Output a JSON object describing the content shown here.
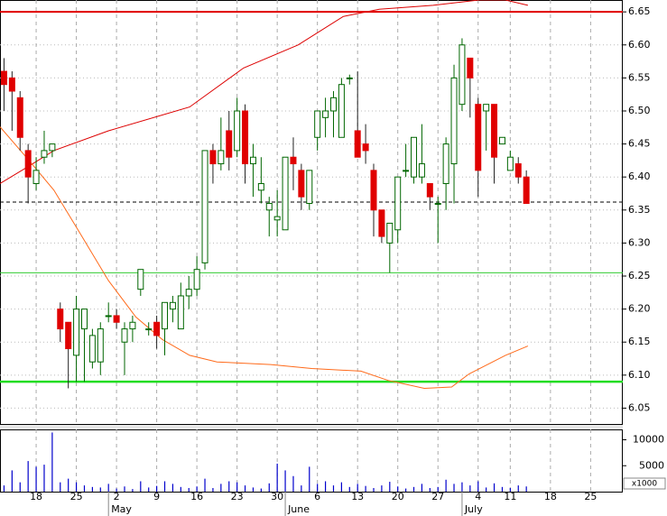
{
  "chart_data": {
    "type": "candlestick",
    "xlim": [
      -0.5,
      77
    ],
    "ylim": [
      6.026,
      6.668
    ],
    "yticks": [
      6.05,
      {
        "value": 6.1,
        "label": "6.10"
      },
      6.15,
      {
        "value": 6.2,
        "label": "6.20"
      },
      6.25,
      {
        "value": 6.3,
        "label": "6.30"
      },
      6.35,
      {
        "value": 6.4,
        "label": "6.40"
      },
      6.45,
      {
        "value": 6.5,
        "label": "6.50"
      },
      6.55,
      {
        "value": 6.6,
        "label": "6.60"
      },
      6.65
    ],
    "xticks": [
      {
        "value": 4,
        "label": "18"
      },
      {
        "value": 9,
        "label": "25"
      },
      {
        "value": 14,
        "label": "2"
      },
      {
        "value": 19,
        "label": "9"
      },
      {
        "value": 24,
        "label": "16"
      },
      {
        "value": 29,
        "label": "23"
      },
      {
        "value": 34,
        "label": "30"
      },
      {
        "value": 39,
        "label": "6"
      },
      {
        "value": 44,
        "label": "13"
      },
      {
        "value": 49,
        "label": "20"
      },
      {
        "value": 54,
        "label": "27"
      },
      {
        "value": 59,
        "label": "4"
      },
      {
        "value": 63,
        "label": "11"
      },
      {
        "value": 68,
        "label": "18"
      },
      {
        "value": 73,
        "label": "25"
      }
    ],
    "months": [
      {
        "value": 13,
        "label": "May"
      },
      {
        "value": 35,
        "label": "June"
      },
      {
        "value": 57,
        "label": "July"
      }
    ],
    "grid": true,
    "up_color": "#006600",
    "down_color": "#e00000",
    "candles": [
      {
        "o": 6.56,
        "h": 6.58,
        "l": 6.5,
        "c": 6.54
      },
      {
        "o": 6.55,
        "h": 6.56,
        "l": 6.47,
        "c": 6.53
      },
      {
        "o": 6.52,
        "h": 6.53,
        "l": 6.44,
        "c": 6.46
      },
      {
        "o": 6.44,
        "h": 6.45,
        "l": 6.36,
        "c": 6.4
      },
      {
        "o": 6.39,
        "h": 6.43,
        "l": 6.38,
        "c": 6.41
      },
      {
        "o": 6.43,
        "h": 6.47,
        "l": 6.42,
        "c": 6.44
      },
      {
        "o": 6.44,
        "h": 6.45,
        "l": 6.43,
        "c": 6.45
      },
      {
        "o": 6.2,
        "h": 6.21,
        "l": 6.15,
        "c": 6.17
      },
      {
        "o": 6.18,
        "h": 6.18,
        "l": 6.08,
        "c": 6.14
      },
      {
        "o": 6.13,
        "h": 6.22,
        "l": 6.09,
        "c": 6.2
      },
      {
        "o": 6.17,
        "h": 6.2,
        "l": 6.09,
        "c": 6.2
      },
      {
        "o": 6.12,
        "h": 6.17,
        "l": 6.11,
        "c": 6.16
      },
      {
        "o": 6.12,
        "h": 6.18,
        "l": 6.1,
        "c": 6.17
      },
      {
        "o": 6.19,
        "h": 6.21,
        "l": 6.18,
        "c": 6.19
      },
      {
        "o": 6.19,
        "h": 6.2,
        "l": 6.17,
        "c": 6.18
      },
      {
        "o": 6.15,
        "h": 6.18,
        "l": 6.1,
        "c": 6.17
      },
      {
        "o": 6.17,
        "h": 6.19,
        "l": 6.15,
        "c": 6.18
      },
      {
        "o": 6.23,
        "h": 6.26,
        "l": 6.22,
        "c": 6.26
      },
      {
        "o": 6.17,
        "h": 6.18,
        "l": 6.16,
        "c": 6.17
      },
      {
        "o": 6.18,
        "h": 6.19,
        "l": 6.14,
        "c": 6.16
      },
      {
        "o": 6.17,
        "h": 6.21,
        "l": 6.13,
        "c": 6.21
      },
      {
        "o": 6.2,
        "h": 6.22,
        "l": 6.18,
        "c": 6.21
      },
      {
        "o": 6.17,
        "h": 6.24,
        "l": 6.17,
        "c": 6.22
      },
      {
        "o": 6.22,
        "h": 6.25,
        "l": 6.2,
        "c": 6.23
      },
      {
        "o": 6.23,
        "h": 6.28,
        "l": 6.22,
        "c": 6.26
      },
      {
        "o": 6.27,
        "h": 6.44,
        "l": 6.26,
        "c": 6.44
      },
      {
        "o": 6.44,
        "h": 6.45,
        "l": 6.39,
        "c": 6.42
      },
      {
        "o": 6.42,
        "h": 6.49,
        "l": 6.41,
        "c": 6.44
      },
      {
        "o": 6.47,
        "h": 6.5,
        "l": 6.41,
        "c": 6.43
      },
      {
        "o": 6.44,
        "h": 6.52,
        "l": 6.43,
        "c": 6.5
      },
      {
        "o": 6.5,
        "h": 6.51,
        "l": 6.39,
        "c": 6.42
      },
      {
        "o": 6.42,
        "h": 6.45,
        "l": 6.37,
        "c": 6.43
      },
      {
        "o": 6.38,
        "h": 6.43,
        "l": 6.36,
        "c": 6.39
      },
      {
        "o": 6.35,
        "h": 6.37,
        "l": 6.31,
        "c": 6.36
      },
      {
        "o": 6.335,
        "h": 6.38,
        "l": 6.31,
        "c": 6.34
      },
      {
        "o": 6.32,
        "h": 6.43,
        "l": 6.32,
        "c": 6.43
      },
      {
        "o": 6.43,
        "h": 6.46,
        "l": 6.38,
        "c": 6.42
      },
      {
        "o": 6.41,
        "h": 6.42,
        "l": 6.35,
        "c": 6.37
      },
      {
        "o": 6.36,
        "h": 6.41,
        "l": 6.35,
        "c": 6.41
      },
      {
        "o": 6.46,
        "h": 6.5,
        "l": 6.44,
        "c": 6.5
      },
      {
        "o": 6.49,
        "h": 6.52,
        "l": 6.46,
        "c": 6.5
      },
      {
        "o": 6.5,
        "h": 6.53,
        "l": 6.46,
        "c": 6.52
      },
      {
        "o": 6.46,
        "h": 6.55,
        "l": 6.46,
        "c": 6.54
      },
      {
        "o": 6.55,
        "h": 6.555,
        "l": 6.54,
        "c": 6.55
      },
      {
        "o": 6.47,
        "h": 6.56,
        "l": 6.43,
        "c": 6.43
      },
      {
        "o": 6.45,
        "h": 6.48,
        "l": 6.42,
        "c": 6.44
      },
      {
        "o": 6.41,
        "h": 6.42,
        "l": 6.31,
        "c": 6.35
      },
      {
        "o": 6.35,
        "h": 6.35,
        "l": 6.3,
        "c": 6.31
      },
      {
        "o": 6.3,
        "h": 6.33,
        "l": 6.255,
        "c": 6.33
      },
      {
        "o": 6.32,
        "h": 6.4,
        "l": 6.3,
        "c": 6.4
      },
      {
        "o": 6.41,
        "h": 6.45,
        "l": 6.4,
        "c": 6.41
      },
      {
        "o": 6.4,
        "h": 6.46,
        "l": 6.39,
        "c": 6.46
      },
      {
        "o": 6.4,
        "h": 6.48,
        "l": 6.39,
        "c": 6.42
      },
      {
        "o": 6.39,
        "h": 6.39,
        "l": 6.35,
        "c": 6.37
      },
      {
        "o": 6.36,
        "h": 6.37,
        "l": 6.3,
        "c": 6.36
      },
      {
        "o": 6.39,
        "h": 6.46,
        "l": 6.35,
        "c": 6.45
      },
      {
        "o": 6.42,
        "h": 6.57,
        "l": 6.36,
        "c": 6.55
      },
      {
        "o": 6.51,
        "h": 6.61,
        "l": 6.5,
        "c": 6.6
      },
      {
        "o": 6.58,
        "h": 6.58,
        "l": 6.49,
        "c": 6.55
      },
      {
        "o": 6.51,
        "h": 6.52,
        "l": 6.37,
        "c": 6.41
      },
      {
        "o": 6.5,
        "h": 6.51,
        "l": 6.44,
        "c": 6.51
      },
      {
        "o": 6.51,
        "h": 6.51,
        "l": 6.39,
        "c": 6.43
      },
      {
        "o": 6.45,
        "h": 6.46,
        "l": 6.45,
        "c": 6.46
      },
      {
        "o": 6.41,
        "h": 6.44,
        "l": 6.41,
        "c": 6.43
      },
      {
        "o": 6.42,
        "h": 6.43,
        "l": 6.39,
        "c": 6.4
      },
      {
        "o": 6.4,
        "h": 6.41,
        "l": 6.36,
        "c": 6.36
      }
    ],
    "lines": [
      {
        "color": "#dd0000",
        "x": [
          -0.5,
          2.9,
          6.2,
          13,
          23.1,
          29.8,
          36.6,
          42.2,
          46.7,
          53.4,
          59.1,
          62.4,
          65.2
        ],
        "values": [
          6.39,
          6.415,
          6.44,
          6.47,
          6.506,
          6.565,
          6.6,
          6.643,
          6.654,
          6.66,
          6.668,
          6.668,
          6.66
        ]
      },
      {
        "color": "#ff6a1a",
        "x": [
          -0.5,
          2.9,
          6.2,
          9.6,
          13,
          16.4,
          19.7,
          23.1,
          26.5,
          33.2,
          38.3,
          44.4,
          47.8,
          52.3,
          55.7,
          57.9,
          62.4,
          65.2
        ],
        "values": [
          6.476,
          6.428,
          6.38,
          6.312,
          6.243,
          6.188,
          6.154,
          6.13,
          6.12,
          6.116,
          6.11,
          6.106,
          6.092,
          6.08,
          6.082,
          6.102,
          6.13,
          6.144
        ]
      }
    ],
    "hlines": [
      {
        "value": 6.65,
        "color": "#e00000",
        "width": 2
      },
      {
        "value": 6.255,
        "color": "#33cc33",
        "width": 1
      },
      {
        "value": 6.09,
        "color": "#22dd22",
        "width": 2.5
      },
      {
        "value": 6.362,
        "color": "#000000",
        "width": 1,
        "dashed": true
      }
    ],
    "volume": {
      "color": "#0000cc",
      "ylim": [
        0,
        12000
      ],
      "yticks": [
        5000,
        10000
      ],
      "unit": "x1000",
      "values": [
        1200,
        4100,
        1800,
        5900,
        4800,
        5200,
        11400,
        1800,
        2500,
        1800,
        1200,
        900,
        800,
        1500,
        600,
        1000,
        500,
        2000,
        800,
        1100,
        2000,
        1500,
        900,
        700,
        1000,
        2500,
        700,
        1500,
        2000,
        1800,
        1200,
        800,
        600,
        1600,
        5400,
        4100,
        3000,
        1200,
        4800,
        1500,
        2000,
        1200,
        1800,
        900,
        1500,
        1100,
        700,
        1200,
        1900,
        1000,
        600,
        900,
        1500,
        700,
        900,
        2300,
        1500,
        1800,
        1200,
        2000,
        800,
        1600,
        900,
        700,
        1200,
        1000
      ]
    }
  }
}
